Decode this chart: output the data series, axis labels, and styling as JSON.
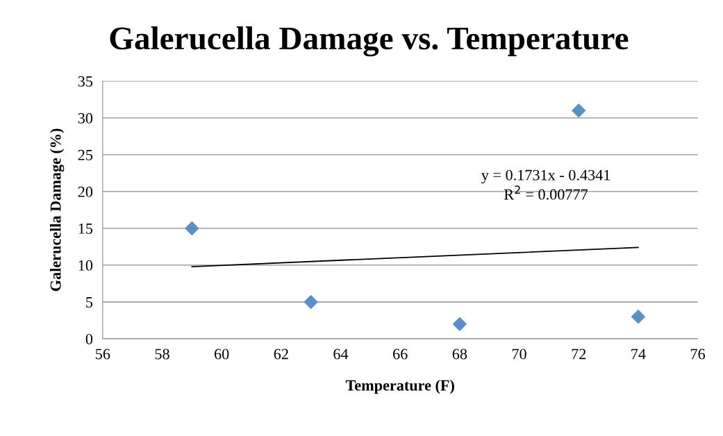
{
  "chart_data": {
    "type": "scatter",
    "title": "Galerucella Damage vs. Temperature",
    "xlabel": "Temperature (F)",
    "ylabel": "Galerucella Damage (%)",
    "series": [
      {
        "color": "#5b8fc9",
        "marker": "diamond",
        "x": [
          59,
          63,
          68,
          72,
          74
        ],
        "values": [
          15,
          5,
          2,
          31,
          3
        ]
      },
      {
        "type": "line",
        "color": "#000000",
        "marker": "none",
        "line_style": "solid",
        "x": [
          59,
          74
        ],
        "values": [
          9.8,
          12.4
        ]
      }
    ],
    "annotations": [
      "y = 0.1731x - 0.4341",
      "R$^{2}$ = 0.00777"
    ],
    "xlim": [
      56,
      76
    ],
    "xticks": [
      56,
      58,
      60,
      62,
      64,
      66,
      68,
      70,
      72,
      74,
      76
    ],
    "ylim": [
      0,
      35
    ],
    "yticks": [
      0,
      5,
      10,
      15,
      20,
      25,
      30,
      35
    ],
    "grid": "y",
    "legend": false
  }
}
